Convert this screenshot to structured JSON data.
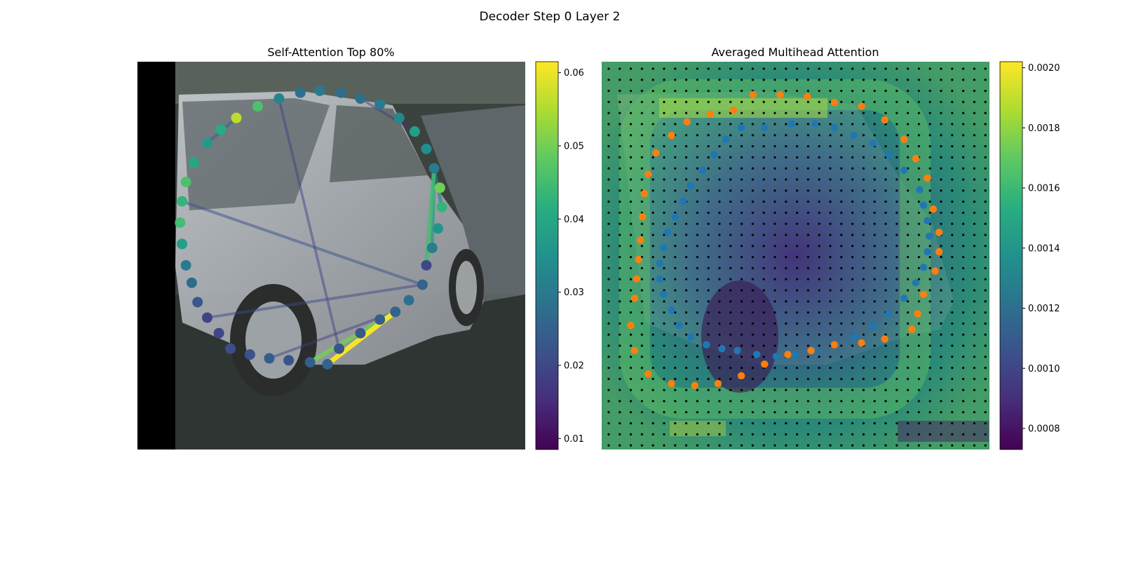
{
  "figure": {
    "suptitle": "Decoder Step 0 Layer 2"
  },
  "chart_data": [
    {
      "type": "scatter",
      "title": "Self-Attention Top 80%",
      "background": "photo of a silver hatchback car parked on a street",
      "colormap": "viridis",
      "grid": false,
      "colorbar": {
        "range": [
          0.0085,
          0.0615
        ],
        "ticks": [
          0.01,
          0.02,
          0.03,
          0.04,
          0.05,
          0.06
        ],
        "tick_labels": [
          "0.01",
          "0.02",
          "0.03",
          "0.04",
          "0.05",
          "0.06"
        ]
      },
      "xlim": [
        0,
        1
      ],
      "ylim": [
        0,
        1
      ],
      "points": [
        {
          "x": 0.49,
          "y": 0.78,
          "v": 0.025
        },
        {
          "x": 0.445,
          "y": 0.775,
          "v": 0.024
        },
        {
          "x": 0.39,
          "y": 0.77,
          "v": 0.022
        },
        {
          "x": 0.34,
          "y": 0.765,
          "v": 0.024
        },
        {
          "x": 0.29,
          "y": 0.755,
          "v": 0.022
        },
        {
          "x": 0.24,
          "y": 0.74,
          "v": 0.021
        },
        {
          "x": 0.21,
          "y": 0.7,
          "v": 0.02
        },
        {
          "x": 0.18,
          "y": 0.66,
          "v": 0.019
        },
        {
          "x": 0.155,
          "y": 0.62,
          "v": 0.023
        },
        {
          "x": 0.14,
          "y": 0.57,
          "v": 0.027
        },
        {
          "x": 0.125,
          "y": 0.525,
          "v": 0.03
        },
        {
          "x": 0.115,
          "y": 0.47,
          "v": 0.038
        },
        {
          "x": 0.11,
          "y": 0.415,
          "v": 0.045
        },
        {
          "x": 0.115,
          "y": 0.36,
          "v": 0.043
        },
        {
          "x": 0.125,
          "y": 0.31,
          "v": 0.046
        },
        {
          "x": 0.145,
          "y": 0.26,
          "v": 0.04
        },
        {
          "x": 0.18,
          "y": 0.21,
          "v": 0.037
        },
        {
          "x": 0.215,
          "y": 0.175,
          "v": 0.041
        },
        {
          "x": 0.255,
          "y": 0.145,
          "v": 0.056
        },
        {
          "x": 0.31,
          "y": 0.115,
          "v": 0.046
        },
        {
          "x": 0.365,
          "y": 0.095,
          "v": 0.032
        },
        {
          "x": 0.42,
          "y": 0.08,
          "v": 0.028
        },
        {
          "x": 0.47,
          "y": 0.075,
          "v": 0.03
        },
        {
          "x": 0.525,
          "y": 0.08,
          "v": 0.027
        },
        {
          "x": 0.575,
          "y": 0.095,
          "v": 0.028
        },
        {
          "x": 0.625,
          "y": 0.11,
          "v": 0.03
        },
        {
          "x": 0.675,
          "y": 0.145,
          "v": 0.033
        },
        {
          "x": 0.715,
          "y": 0.18,
          "v": 0.038
        },
        {
          "x": 0.745,
          "y": 0.225,
          "v": 0.034
        },
        {
          "x": 0.765,
          "y": 0.275,
          "v": 0.03
        },
        {
          "x": 0.78,
          "y": 0.325,
          "v": 0.05
        },
        {
          "x": 0.785,
          "y": 0.375,
          "v": 0.043
        },
        {
          "x": 0.775,
          "y": 0.43,
          "v": 0.036
        },
        {
          "x": 0.76,
          "y": 0.48,
          "v": 0.031
        },
        {
          "x": 0.745,
          "y": 0.525,
          "v": 0.02
        },
        {
          "x": 0.735,
          "y": 0.575,
          "v": 0.025
        },
        {
          "x": 0.7,
          "y": 0.615,
          "v": 0.028
        },
        {
          "x": 0.665,
          "y": 0.645,
          "v": 0.025
        },
        {
          "x": 0.625,
          "y": 0.665,
          "v": 0.024
        },
        {
          "x": 0.575,
          "y": 0.7,
          "v": 0.023
        },
        {
          "x": 0.52,
          "y": 0.74,
          "v": 0.022
        }
      ],
      "lines": [
        {
          "from": 0,
          "to": 37,
          "v": 0.061
        },
        {
          "from": 1,
          "to": 37,
          "v": 0.05
        },
        {
          "from": 34,
          "to": 29,
          "v": 0.045
        },
        {
          "from": 33,
          "to": 29,
          "v": 0.038
        },
        {
          "from": 31,
          "to": 29,
          "v": 0.032
        },
        {
          "from": 16,
          "to": 18,
          "v": 0.026
        },
        {
          "from": 13,
          "to": 35,
          "v": 0.022
        },
        {
          "from": 7,
          "to": 35,
          "v": 0.02
        },
        {
          "from": 3,
          "to": 37,
          "v": 0.018
        },
        {
          "from": 27,
          "to": 24,
          "v": 0.016
        },
        {
          "from": 40,
          "to": 20,
          "v": 0.018
        }
      ]
    },
    {
      "type": "heatmap",
      "title": "Averaged Multihead Attention",
      "background": "photo of a silver hatchback car parked on a street",
      "colormap": "viridis",
      "grid": false,
      "colorbar": {
        "range": [
          0.00073,
          0.00202
        ],
        "ticks": [
          0.0008,
          0.001,
          0.0012,
          0.0014,
          0.0016,
          0.0018,
          0.002
        ],
        "tick_labels": [
          "0.0008",
          "0.0010",
          "0.0012",
          "0.0014",
          "0.0016",
          "0.0018",
          "0.0020"
        ]
      },
      "xlim": [
        0,
        1
      ],
      "ylim": [
        0,
        1
      ],
      "series": [
        {
          "color": "#1f77b4",
          "points": [
            {
              "x": 0.42,
              "y": 0.17
            },
            {
              "x": 0.36,
              "y": 0.17
            },
            {
              "x": 0.32,
              "y": 0.2
            },
            {
              "x": 0.29,
              "y": 0.24
            },
            {
              "x": 0.26,
              "y": 0.28
            },
            {
              "x": 0.23,
              "y": 0.32
            },
            {
              "x": 0.21,
              "y": 0.36
            },
            {
              "x": 0.19,
              "y": 0.4
            },
            {
              "x": 0.17,
              "y": 0.44
            },
            {
              "x": 0.16,
              "y": 0.48
            },
            {
              "x": 0.15,
              "y": 0.52
            },
            {
              "x": 0.15,
              "y": 0.56
            },
            {
              "x": 0.16,
              "y": 0.6
            },
            {
              "x": 0.18,
              "y": 0.64
            },
            {
              "x": 0.2,
              "y": 0.68
            },
            {
              "x": 0.23,
              "y": 0.71
            },
            {
              "x": 0.27,
              "y": 0.73
            },
            {
              "x": 0.31,
              "y": 0.74
            },
            {
              "x": 0.35,
              "y": 0.745
            },
            {
              "x": 0.4,
              "y": 0.755
            },
            {
              "x": 0.45,
              "y": 0.76
            },
            {
              "x": 0.5,
              "y": 0.755
            },
            {
              "x": 0.55,
              "y": 0.745
            },
            {
              "x": 0.6,
              "y": 0.73
            },
            {
              "x": 0.65,
              "y": 0.71
            },
            {
              "x": 0.7,
              "y": 0.68
            },
            {
              "x": 0.74,
              "y": 0.65
            },
            {
              "x": 0.78,
              "y": 0.61
            },
            {
              "x": 0.81,
              "y": 0.57
            },
            {
              "x": 0.83,
              "y": 0.53
            },
            {
              "x": 0.84,
              "y": 0.49
            },
            {
              "x": 0.845,
              "y": 0.45
            },
            {
              "x": 0.84,
              "y": 0.41
            },
            {
              "x": 0.83,
              "y": 0.37
            },
            {
              "x": 0.82,
              "y": 0.33
            },
            {
              "x": 0.78,
              "y": 0.28
            },
            {
              "x": 0.74,
              "y": 0.24
            },
            {
              "x": 0.7,
              "y": 0.21
            },
            {
              "x": 0.65,
              "y": 0.19
            },
            {
              "x": 0.6,
              "y": 0.17
            },
            {
              "x": 0.55,
              "y": 0.16
            },
            {
              "x": 0.49,
              "y": 0.16
            }
          ]
        },
        {
          "color": "#ff7f0e",
          "points": [
            {
              "x": 0.39,
              "y": 0.085
            },
            {
              "x": 0.46,
              "y": 0.085
            },
            {
              "x": 0.53,
              "y": 0.09
            },
            {
              "x": 0.6,
              "y": 0.105
            },
            {
              "x": 0.67,
              "y": 0.115
            },
            {
              "x": 0.73,
              "y": 0.15
            },
            {
              "x": 0.78,
              "y": 0.2
            },
            {
              "x": 0.81,
              "y": 0.25
            },
            {
              "x": 0.84,
              "y": 0.3
            },
            {
              "x": 0.855,
              "y": 0.38
            },
            {
              "x": 0.87,
              "y": 0.44
            },
            {
              "x": 0.87,
              "y": 0.49
            },
            {
              "x": 0.86,
              "y": 0.54
            },
            {
              "x": 0.83,
              "y": 0.6
            },
            {
              "x": 0.815,
              "y": 0.65
            },
            {
              "x": 0.8,
              "y": 0.69
            },
            {
              "x": 0.73,
              "y": 0.715
            },
            {
              "x": 0.67,
              "y": 0.725
            },
            {
              "x": 0.6,
              "y": 0.73
            },
            {
              "x": 0.54,
              "y": 0.745
            },
            {
              "x": 0.48,
              "y": 0.755
            },
            {
              "x": 0.42,
              "y": 0.78
            },
            {
              "x": 0.36,
              "y": 0.81
            },
            {
              "x": 0.3,
              "y": 0.83
            },
            {
              "x": 0.24,
              "y": 0.835
            },
            {
              "x": 0.18,
              "y": 0.83
            },
            {
              "x": 0.12,
              "y": 0.805
            },
            {
              "x": 0.085,
              "y": 0.745
            },
            {
              "x": 0.075,
              "y": 0.68
            },
            {
              "x": 0.085,
              "y": 0.61
            },
            {
              "x": 0.09,
              "y": 0.56
            },
            {
              "x": 0.095,
              "y": 0.51
            },
            {
              "x": 0.1,
              "y": 0.46
            },
            {
              "x": 0.105,
              "y": 0.4
            },
            {
              "x": 0.11,
              "y": 0.34
            },
            {
              "x": 0.12,
              "y": 0.29
            },
            {
              "x": 0.14,
              "y": 0.235
            },
            {
              "x": 0.18,
              "y": 0.19
            },
            {
              "x": 0.22,
              "y": 0.155
            },
            {
              "x": 0.28,
              "y": 0.135
            },
            {
              "x": 0.34,
              "y": 0.125
            }
          ]
        }
      ]
    }
  ]
}
